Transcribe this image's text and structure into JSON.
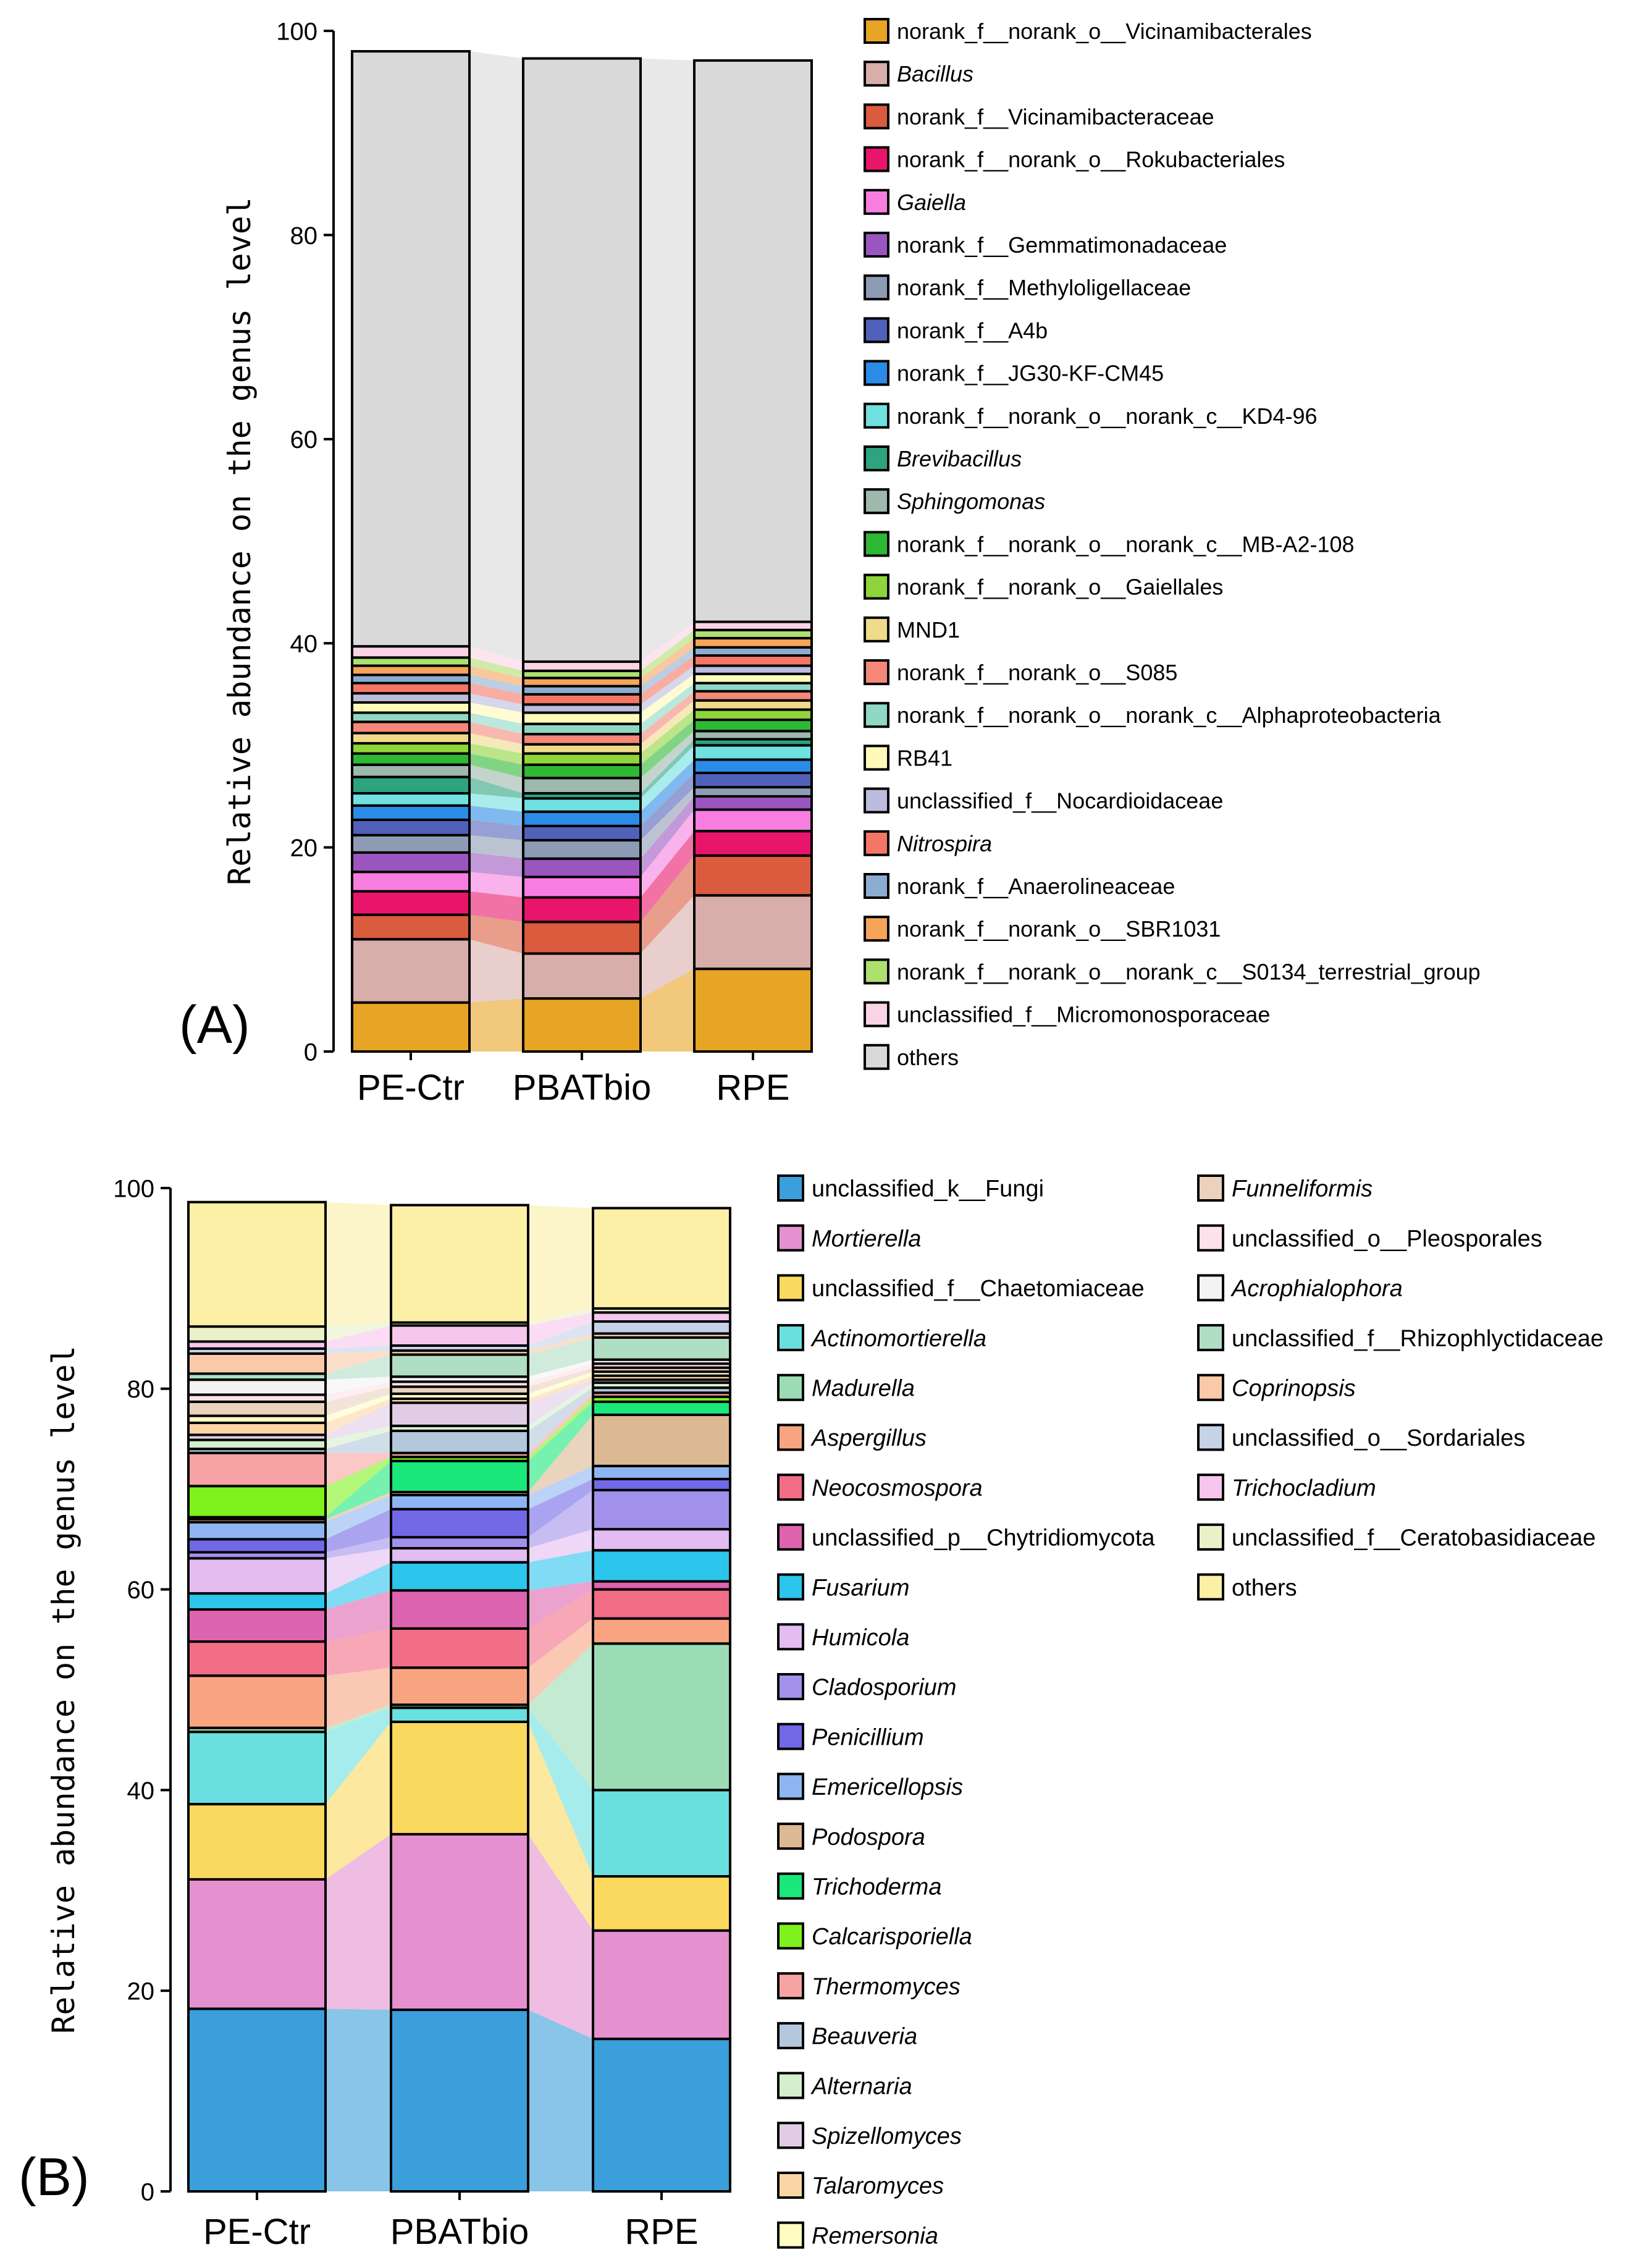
{
  "chart_data": [
    {
      "type": "stacked-bar",
      "panel_label": "(A)",
      "ylabel": "Relative abundance on the genus level",
      "ylim": [
        0,
        100
      ],
      "yticks": [
        "0",
        "20",
        "40",
        "60",
        "80",
        "100"
      ],
      "categories": [
        "PE-Ctr",
        "PBATbio",
        "RPE"
      ],
      "series": [
        {
          "name": "norank_f__norank_o__Vicinamibacterales",
          "italic": false,
          "color": "#E8A425",
          "values": [
            4.8,
            5.2,
            8.1
          ]
        },
        {
          "name": "Bacillus",
          "italic": true,
          "color": "#D8AEAA",
          "values": [
            6.2,
            4.4,
            7.2
          ]
        },
        {
          "name": "norank_f__Vicinamibacteraceae",
          "italic": false,
          "color": "#DB5B3E",
          "values": [
            2.4,
            3.1,
            3.9
          ]
        },
        {
          "name": "norank_f__norank_o__Rokubacteriales",
          "italic": false,
          "color": "#E8156A",
          "values": [
            2.3,
            2.4,
            2.4
          ]
        },
        {
          "name": "Gaiella",
          "italic": true,
          "color": "#F77EE0",
          "values": [
            1.9,
            2.0,
            2.1
          ]
        },
        {
          "name": "norank_f__Gemmatimonadaceae",
          "italic": false,
          "color": "#9B55BF",
          "values": [
            1.9,
            1.8,
            1.3
          ]
        },
        {
          "name": "norank_f__Methyloligellaceae",
          "italic": false,
          "color": "#8E9BB5",
          "values": [
            1.7,
            1.8,
            0.9
          ]
        },
        {
          "name": "norank_f__A4b",
          "italic": false,
          "color": "#5160B8",
          "values": [
            1.5,
            1.4,
            1.4
          ]
        },
        {
          "name": "norank_f__JG30-KF-CM45",
          "italic": false,
          "color": "#2B8BE6",
          "values": [
            1.4,
            1.4,
            1.3
          ]
        },
        {
          "name": "norank_f__norank_o__norank_c__KD4-96",
          "italic": false,
          "color": "#70E0E0",
          "values": [
            1.2,
            1.3,
            1.4
          ]
        },
        {
          "name": "Brevibacillus",
          "italic": true,
          "color": "#2DA37E",
          "values": [
            1.6,
            0.5,
            0.6
          ]
        },
        {
          "name": "Sphingomonas",
          "italic": true,
          "color": "#9DB8AC",
          "values": [
            1.2,
            1.5,
            0.8
          ]
        },
        {
          "name": "norank_f__norank_o__norank_c__MB-A2-108",
          "italic": false,
          "color": "#2EB833",
          "values": [
            1.1,
            1.3,
            1.1
          ]
        },
        {
          "name": "norank_f__norank_o__Gaiellales",
          "italic": false,
          "color": "#8ED43A",
          "values": [
            1.0,
            1.1,
            1.0
          ]
        },
        {
          "name": "MND1",
          "italic": false,
          "color": "#EFDA8A",
          "values": [
            1.0,
            0.9,
            0.9
          ]
        },
        {
          "name": "norank_f__norank_o__S085",
          "italic": false,
          "color": "#F58878",
          "values": [
            1.1,
            1.0,
            0.9
          ]
        },
        {
          "name": "norank_f__norank_o__norank_c__Alphaproteobacteria",
          "italic": false,
          "color": "#8ED8C4",
          "values": [
            0.9,
            1.0,
            0.8
          ]
        },
        {
          "name": "RB41",
          "italic": false,
          "color": "#FFFAB8",
          "values": [
            1.0,
            1.1,
            0.9
          ]
        },
        {
          "name": "unclassified_f__Nocardioidaceae",
          "italic": false,
          "color": "#BCBCDE",
          "values": [
            0.9,
            0.8,
            0.8
          ]
        },
        {
          "name": "Nitrospira",
          "italic": true,
          "color": "#F47765",
          "values": [
            1.0,
            1.0,
            1.0
          ]
        },
        {
          "name": "norank_f__Anaerolineaceae",
          "italic": false,
          "color": "#8DADD0",
          "values": [
            0.8,
            0.8,
            0.8
          ]
        },
        {
          "name": "norank_f__norank_o__SBR1031",
          "italic": false,
          "color": "#F5A45A",
          "values": [
            0.9,
            0.8,
            0.9
          ]
        },
        {
          "name": "norank_f__norank_o__norank_c__S0134_terrestrial_group",
          "italic": false,
          "color": "#AEE070",
          "values": [
            0.8,
            0.7,
            0.8
          ]
        },
        {
          "name": "unclassified_f__Micromonosporaceae",
          "italic": false,
          "color": "#FAD4E4",
          "values": [
            1.1,
            0.9,
            0.8
          ]
        },
        {
          "name": "others",
          "italic": false,
          "color": "#D9D9D9",
          "values": [
            58.3,
            59.1,
            55.0
          ]
        }
      ]
    },
    {
      "type": "stacked-bar",
      "panel_label": "(B)",
      "ylabel": "Relative abundance on the genus level",
      "ylim": [
        0,
        100
      ],
      "yticks": [
        "0",
        "20",
        "40",
        "60",
        "80",
        "100"
      ],
      "categories": [
        "PE-Ctr",
        "PBATbio",
        "RPE"
      ],
      "series": [
        {
          "name": "unclassified_k__Fungi",
          "italic": false,
          "color": "#3A9FDB",
          "values": [
            18.2,
            18.1,
            15.2
          ]
        },
        {
          "name": "Mortierella",
          "italic": true,
          "color": "#E590CF",
          "values": [
            12.9,
            17.5,
            10.8
          ]
        },
        {
          "name": "unclassified_f__Chaetomiaceae",
          "italic": false,
          "color": "#FAD95E",
          "values": [
            7.5,
            11.2,
            5.4
          ]
        },
        {
          "name": "Actinomortierella",
          "italic": true,
          "color": "#6ADFE0",
          "values": [
            7.2,
            1.4,
            8.6
          ]
        },
        {
          "name": "Madurella",
          "italic": true,
          "color": "#9CDCB4",
          "values": [
            0.4,
            0.3,
            14.6
          ]
        },
        {
          "name": "Aspergillus",
          "italic": true,
          "color": "#F9A481",
          "values": [
            5.2,
            3.7,
            2.5
          ]
        },
        {
          "name": "Neocosmospora",
          "italic": true,
          "color": "#F26D86",
          "values": [
            3.4,
            3.9,
            2.9
          ]
        },
        {
          "name": "unclassified_p__Chytridiomycota",
          "italic": false,
          "color": "#DE64AF",
          "values": [
            3.2,
            3.8,
            0.8
          ]
        },
        {
          "name": "Fusarium",
          "italic": true,
          "color": "#2CC5EC",
          "values": [
            1.6,
            2.8,
            3.1
          ]
        },
        {
          "name": "Humicola",
          "italic": true,
          "color": "#E3BCF2",
          "values": [
            3.5,
            1.4,
            2.1
          ]
        },
        {
          "name": "Cladosporium",
          "italic": true,
          "color": "#A291EB",
          "values": [
            0.6,
            1.1,
            3.9
          ]
        },
        {
          "name": "Penicillium",
          "italic": true,
          "color": "#7168E6",
          "values": [
            1.3,
            2.8,
            1.1
          ]
        },
        {
          "name": "Emericellopsis",
          "italic": true,
          "color": "#8EB5F2",
          "values": [
            1.7,
            1.4,
            1.3
          ]
        },
        {
          "name": "Podospora",
          "italic": true,
          "color": "#DCB893",
          "values": [
            0.3,
            0.3,
            5.1
          ]
        },
        {
          "name": "Trichoderma",
          "italic": true,
          "color": "#1AE87B",
          "values": [
            0.2,
            3.1,
            1.3
          ]
        },
        {
          "name": "Calcarisporiella",
          "italic": true,
          "color": "#7EF21C",
          "values": [
            3.1,
            0.4,
            0.5
          ]
        },
        {
          "name": "Thermomyces",
          "italic": true,
          "color": "#F8A3A3",
          "values": [
            3.3,
            0.4,
            0.4
          ]
        },
        {
          "name": "Beauveria",
          "italic": true,
          "color": "#B3C8DC",
          "values": [
            0.4,
            2.2,
            0.5
          ]
        },
        {
          "name": "Alternaria",
          "italic": true,
          "color": "#D4EFCC",
          "values": [
            0.9,
            0.5,
            0.5
          ]
        },
        {
          "name": "Spizellomyces",
          "italic": true,
          "color": "#E1CCE6",
          "values": [
            0.5,
            2.3,
            0.3
          ]
        },
        {
          "name": "Talaromyces",
          "italic": true,
          "color": "#FBD5A6",
          "values": [
            1.2,
            0.4,
            0.4
          ]
        },
        {
          "name": "Remersonia",
          "italic": true,
          "color": "#FFFBC2",
          "values": [
            0.7,
            0.5,
            0.4
          ]
        },
        {
          "name": "Funneliformis",
          "italic": true,
          "color": "#EAD2BE",
          "values": [
            1.4,
            0.7,
            0.4
          ]
        },
        {
          "name": "unclassified_o__Pleosporales",
          "italic": false,
          "color": "#FDE2EA",
          "values": [
            0.7,
            0.5,
            0.4
          ]
        },
        {
          "name": "Acrophialophora",
          "italic": true,
          "color": "#F3F3F3",
          "values": [
            1.5,
            0.5,
            0.4
          ]
        },
        {
          "name": "unclassified_f__Rhizophlyctidaceae",
          "italic": false,
          "color": "#B0DEC3",
          "values": [
            0.6,
            2.2,
            2.2
          ]
        },
        {
          "name": "Coprinopsis",
          "italic": true,
          "color": "#F9C9A8",
          "values": [
            2.0,
            0.4,
            0.4
          ]
        },
        {
          "name": "unclassified_o__Sordariales",
          "italic": false,
          "color": "#C5D2E8",
          "values": [
            0.5,
            0.5,
            1.2
          ]
        },
        {
          "name": "Trichocladium",
          "italic": true,
          "color": "#F7C6EC",
          "values": [
            0.7,
            2.0,
            0.9
          ]
        },
        {
          "name": "unclassified_f__Ceratobasidiaceae",
          "italic": false,
          "color": "#E8F1C8",
          "values": [
            1.5,
            0.3,
            0.4
          ]
        },
        {
          "name": "others",
          "italic": false,
          "color": "#FCEFA6",
          "values": [
            12.4,
            11.7,
            10.0
          ]
        }
      ]
    }
  ]
}
